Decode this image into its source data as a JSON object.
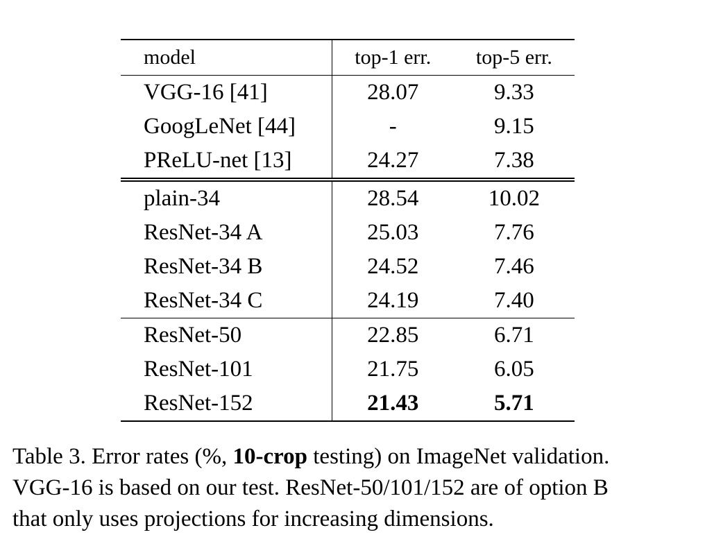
{
  "table": {
    "columns": [
      "model",
      "top-1 err.",
      "top-5 err."
    ],
    "groups": [
      {
        "rows": [
          {
            "model": "VGG-16 [41]",
            "top1": "28.07",
            "top5": "9.33"
          },
          {
            "model": "GoogLeNet [44]",
            "top1": "-",
            "top5": "9.15"
          },
          {
            "model": "PReLU-net [13]",
            "top1": "24.27",
            "top5": "7.38"
          }
        ]
      },
      {
        "rows": [
          {
            "model": "plain-34",
            "top1": "28.54",
            "top5": "10.02"
          },
          {
            "model": "ResNet-34 A",
            "top1": "25.03",
            "top5": "7.76"
          },
          {
            "model": "ResNet-34 B",
            "top1": "24.52",
            "top5": "7.46"
          },
          {
            "model": "ResNet-34 C",
            "top1": "24.19",
            "top5": "7.40"
          }
        ]
      },
      {
        "rows": [
          {
            "model": "ResNet-50",
            "top1": "22.85",
            "top5": "6.71"
          },
          {
            "model": "ResNet-101",
            "top1": "21.75",
            "top5": "6.05"
          },
          {
            "model": "ResNet-152",
            "top1": "21.43",
            "top5": "5.71",
            "bold": true
          }
        ]
      }
    ]
  },
  "caption": {
    "prefix": "Table 3. Error rates (%, ",
    "bold": "10-crop",
    "suffix": " testing) on ImageNet validation.",
    "line2": "VGG-16 is based on our test. ResNet-50/101/152 are of option B",
    "line3": "that only uses projections for increasing dimensions."
  }
}
